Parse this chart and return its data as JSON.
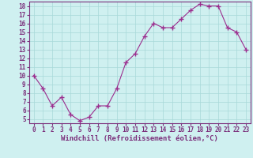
{
  "hours": [
    0,
    1,
    2,
    3,
    4,
    5,
    6,
    7,
    8,
    9,
    10,
    11,
    12,
    13,
    14,
    15,
    16,
    17,
    18,
    19,
    20,
    21,
    22,
    23
  ],
  "values": [
    10,
    8.5,
    6.5,
    7.5,
    5.5,
    4.8,
    5.2,
    6.5,
    6.5,
    8.5,
    11.5,
    12.5,
    14.5,
    16.0,
    15.5,
    15.5,
    16.5,
    17.5,
    18.2,
    18.0,
    18.0,
    15.5,
    15.0,
    13.0
  ],
  "line_color": "#9b2d8e",
  "marker": "+",
  "marker_size": 4,
  "bg_color": "#cff0f0",
  "grid_color": "#a8d8d8",
  "xlabel": "Windchill (Refroidissement éolien,°C)",
  "ylim": [
    4.5,
    18.5
  ],
  "xlim": [
    -0.5,
    23.5
  ],
  "yticks": [
    5,
    6,
    7,
    8,
    9,
    10,
    11,
    12,
    13,
    14,
    15,
    16,
    17,
    18
  ],
  "xticks": [
    0,
    1,
    2,
    3,
    4,
    5,
    6,
    7,
    8,
    9,
    10,
    11,
    12,
    13,
    14,
    15,
    16,
    17,
    18,
    19,
    20,
    21,
    22,
    23
  ],
  "tick_label_fontsize": 5.5,
  "xlabel_fontsize": 6.5,
  "axis_color": "#7b2f7b",
  "spine_color": "#7b2f7b"
}
